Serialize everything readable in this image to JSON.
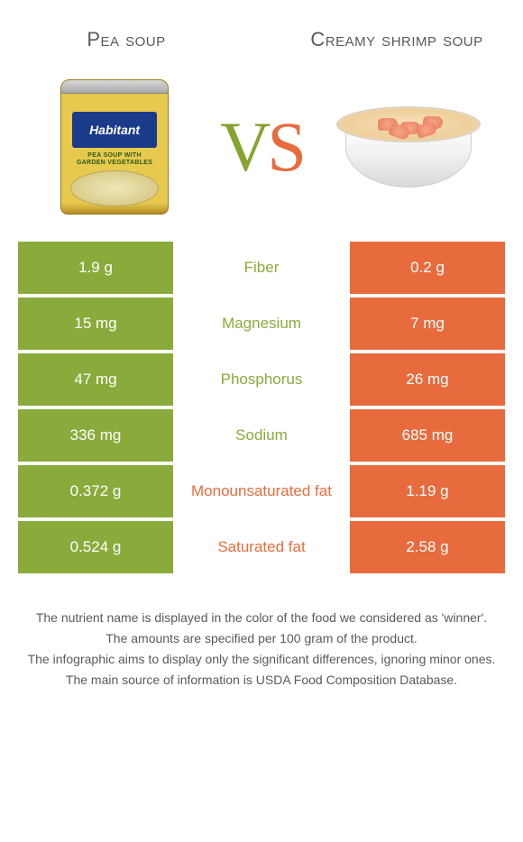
{
  "colors": {
    "left": "#8aab3c",
    "right": "#e86b3e",
    "row_bg_left": "#8aab3c",
    "row_bg_right": "#e86b3e",
    "mid_text_left_win": "#8aab3c",
    "mid_text_right_win": "#e86b3e",
    "footer_text": "#5a5a5a"
  },
  "header": {
    "left_title": "Pea soup",
    "right_title": "Creamy shrimp soup"
  },
  "vs": {
    "v": "V",
    "s": "S"
  },
  "can": {
    "brand": "Habitant",
    "sub": "PEA SOUP WITH\nGARDEN VEGETABLES"
  },
  "rows": [
    {
      "left": "1.9 g",
      "label": "Fiber",
      "right": "0.2 g",
      "winner": "left"
    },
    {
      "left": "15 mg",
      "label": "Magnesium",
      "right": "7 mg",
      "winner": "left"
    },
    {
      "left": "47 mg",
      "label": "Phosphorus",
      "right": "26 mg",
      "winner": "left"
    },
    {
      "left": "336 mg",
      "label": "Sodium",
      "right": "685 mg",
      "winner": "left"
    },
    {
      "left": "0.372 g",
      "label": "Monounsaturated fat",
      "right": "1.19 g",
      "winner": "right"
    },
    {
      "left": "0.524 g",
      "label": "Saturated fat",
      "right": "2.58 g",
      "winner": "right"
    }
  ],
  "footer": [
    "The nutrient name is displayed in the color of the food we considered as 'winner'.",
    "The amounts are specified per 100 gram of the product.",
    "The infographic aims to display only the significant differences, ignoring minor ones.",
    "The main source of information is USDA Food Composition Database."
  ]
}
